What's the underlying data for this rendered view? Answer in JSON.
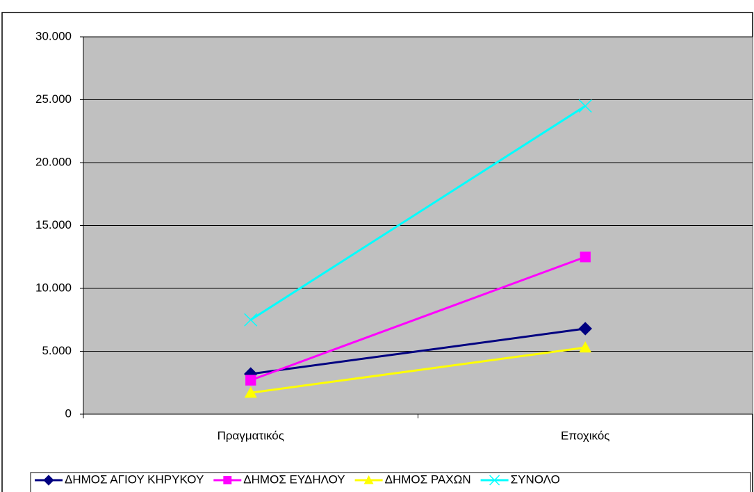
{
  "chart_data": {
    "type": "line",
    "categories": [
      "Πραγματικός",
      "Εποχικός"
    ],
    "series": [
      {
        "name": "ΔΗΜΟΣ ΑΓΙΟΥ ΚΗΡΥΚΟΥ",
        "color": "#000080",
        "marker": "diamond",
        "values": [
          3200,
          6800
        ]
      },
      {
        "name": "ΔΗΜΟΣ ΕΥΔΗΛΟΥ",
        "color": "#ff00ff",
        "marker": "square",
        "values": [
          2700,
          12500
        ]
      },
      {
        "name": "ΔΗΜΟΣ ΡΑΧΩΝ",
        "color": "#ffff00",
        "marker": "triangle",
        "values": [
          1700,
          5300
        ]
      },
      {
        "name": "ΣΥΝΟΛΟ",
        "color": "#00ffff",
        "marker": "x",
        "values": [
          7500,
          24500
        ]
      }
    ],
    "ylim": [
      0,
      30000
    ],
    "yticks": [
      0,
      {
        "value": 5000,
        "label": "5.000"
      },
      {
        "value": 10000,
        "label": "10.000"
      },
      {
        "value": 15000,
        "label": "15.000"
      },
      {
        "value": 20000,
        "label": "20.000"
      },
      {
        "value": 25000,
        "label": "25.000"
      },
      {
        "value": 30000,
        "label": "30.000"
      }
    ],
    "grid": true,
    "legend": "bottom",
    "plot_background": "#c0c0c0"
  }
}
